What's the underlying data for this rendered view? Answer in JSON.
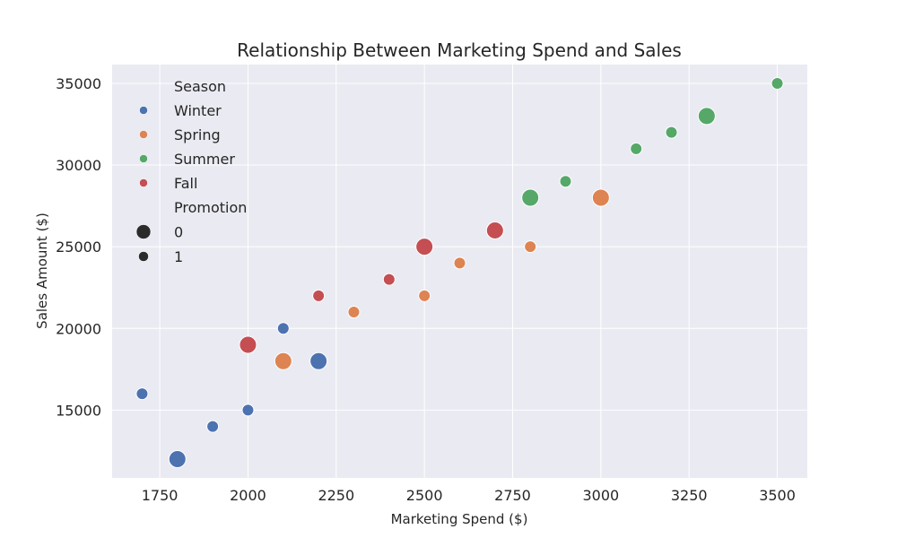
{
  "chart_data": {
    "type": "scatter",
    "title": "Relationship Between Marketing Spend and Sales",
    "xlabel": "Marketing Spend ($)",
    "ylabel": "Sales Amount ($)",
    "xlim": [
      1615,
      3585
    ],
    "ylim": [
      10850,
      36150
    ],
    "xticks": [
      1750,
      2000,
      2250,
      2500,
      2750,
      3000,
      3250,
      3500
    ],
    "yticks": [
      15000,
      20000,
      25000,
      30000,
      35000
    ],
    "grid": true,
    "legend_position": "top-left",
    "legend": {
      "hue_title": "Season",
      "size_title": "Promotion",
      "hue_entries": [
        {
          "label": "Winter",
          "color": "#4c72b0"
        },
        {
          "label": "Spring",
          "color": "#dd8452"
        },
        {
          "label": "Summer",
          "color": "#55a868"
        },
        {
          "label": "Fall",
          "color": "#c44e52"
        }
      ],
      "size_entries": [
        {
          "label": "0",
          "promotion": 0
        },
        {
          "label": "1",
          "promotion": 1
        }
      ]
    },
    "colors": {
      "Winter": "#4c72b0",
      "Spring": "#dd8452",
      "Summer": "#55a868",
      "Fall": "#c44e52",
      "background": "#eaeaf2",
      "grid": "#ffffff"
    },
    "points": [
      {
        "x": 1700,
        "y": 16000,
        "season": "Winter",
        "promotion": 1
      },
      {
        "x": 1800,
        "y": 12000,
        "season": "Winter",
        "promotion": 0
      },
      {
        "x": 1900,
        "y": 14000,
        "season": "Winter",
        "promotion": 1
      },
      {
        "x": 2000,
        "y": 15000,
        "season": "Winter",
        "promotion": 1
      },
      {
        "x": 2100,
        "y": 20000,
        "season": "Winter",
        "promotion": 1
      },
      {
        "x": 2200,
        "y": 18000,
        "season": "Winter",
        "promotion": 0
      },
      {
        "x": 2100,
        "y": 18000,
        "season": "Spring",
        "promotion": 0
      },
      {
        "x": 2300,
        "y": 21000,
        "season": "Spring",
        "promotion": 1
      },
      {
        "x": 2500,
        "y": 22000,
        "season": "Spring",
        "promotion": 1
      },
      {
        "x": 2600,
        "y": 24000,
        "season": "Spring",
        "promotion": 1
      },
      {
        "x": 2800,
        "y": 25000,
        "season": "Spring",
        "promotion": 1
      },
      {
        "x": 3000,
        "y": 28000,
        "season": "Spring",
        "promotion": 0
      },
      {
        "x": 2800,
        "y": 28000,
        "season": "Summer",
        "promotion": 0
      },
      {
        "x": 2900,
        "y": 29000,
        "season": "Summer",
        "promotion": 1
      },
      {
        "x": 3100,
        "y": 31000,
        "season": "Summer",
        "promotion": 1
      },
      {
        "x": 3200,
        "y": 32000,
        "season": "Summer",
        "promotion": 1
      },
      {
        "x": 3300,
        "y": 33000,
        "season": "Summer",
        "promotion": 0
      },
      {
        "x": 3500,
        "y": 35000,
        "season": "Summer",
        "promotion": 1
      },
      {
        "x": 2000,
        "y": 19000,
        "season": "Fall",
        "promotion": 0
      },
      {
        "x": 2200,
        "y": 22000,
        "season": "Fall",
        "promotion": 1
      },
      {
        "x": 2400,
        "y": 23000,
        "season": "Fall",
        "promotion": 1
      },
      {
        "x": 2500,
        "y": 25000,
        "season": "Fall",
        "promotion": 0
      },
      {
        "x": 2700,
        "y": 26000,
        "season": "Fall",
        "promotion": 0
      }
    ]
  }
}
